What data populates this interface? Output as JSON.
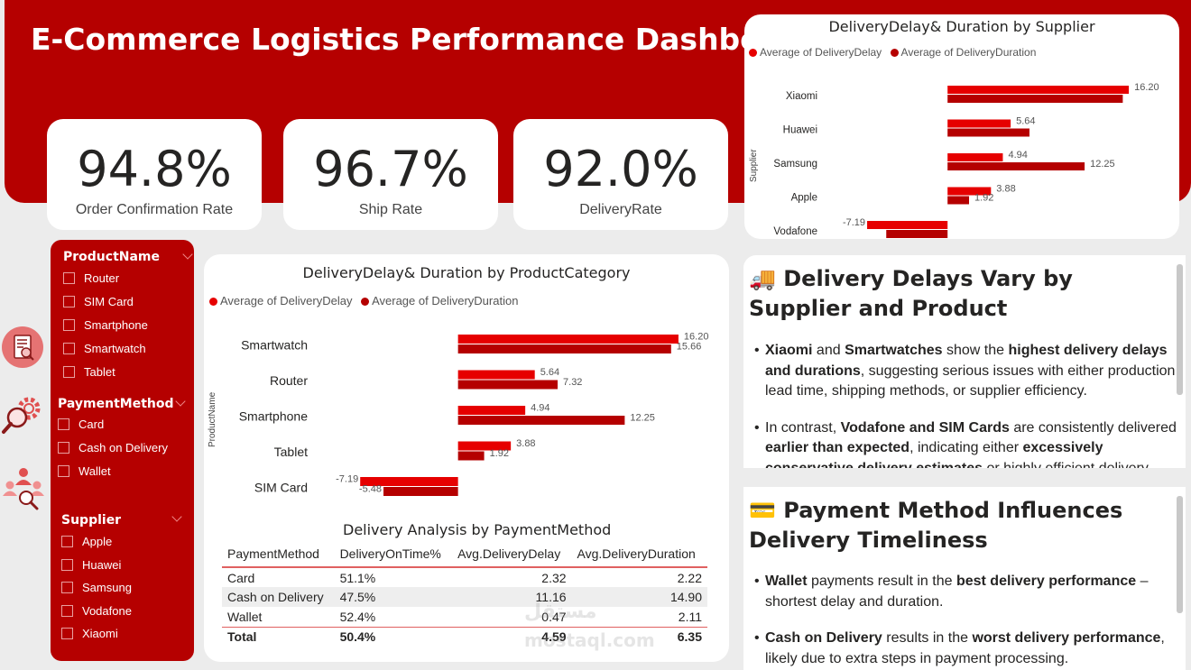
{
  "header": {
    "title": "E-Commerce Logistics Performance Dashboard"
  },
  "kpis": [
    {
      "value": "94.8%",
      "label": "Order Confirmation Rate"
    },
    {
      "value": "96.7%",
      "label": "Ship Rate"
    },
    {
      "value": "92.0%",
      "label": "DeliveryRate"
    }
  ],
  "colors": {
    "primary": "#b50000",
    "delay": "#e60000",
    "duration": "#b50000"
  },
  "legend": {
    "delay": "Average of DeliveryDelay",
    "duration": "Average of DeliveryDuration"
  },
  "supplier_chart": {
    "title": "DeliveryDelay& Duration by Supplier",
    "axis_title": "Supplier",
    "chart_data": {
      "type": "bar",
      "orientation": "horizontal",
      "title": "DeliveryDelay& Duration by Supplier",
      "ylabel": "Supplier",
      "categories": [
        "Xiaomi",
        "Huawei",
        "Samsung",
        "Apple",
        "Vodafone"
      ],
      "series": [
        {
          "name": "Average of DeliveryDelay",
          "values": [
            16.2,
            5.64,
            4.94,
            3.88,
            -7.19
          ],
          "labels": [
            "16.20",
            "5.64",
            "4.94",
            "3.88",
            "-7.19"
          ]
        },
        {
          "name": "Average of DeliveryDuration",
          "values": [
            15.66,
            7.32,
            12.25,
            1.92,
            -5.48
          ],
          "labels": [
            "",
            "",
            "12.25",
            "1.92",
            ""
          ]
        }
      ],
      "xlim": [
        -8,
        17
      ],
      "legend": "top-left"
    }
  },
  "product_chart": {
    "title": "DeliveryDelay& Duration by ProductCategory",
    "axis_title": "ProductName",
    "chart_data": {
      "type": "bar",
      "orientation": "horizontal",
      "title": "DeliveryDelay& Duration by ProductCategory",
      "ylabel": "ProductName",
      "categories": [
        "Smartwatch",
        "Router",
        "Smartphone",
        "Tablet",
        "SIM Card"
      ],
      "series": [
        {
          "name": "Average of DeliveryDelay",
          "values": [
            16.2,
            5.64,
            4.94,
            3.88,
            -7.19
          ],
          "labels": [
            "16.20",
            "5.64",
            "4.94",
            "3.88",
            "-7.19"
          ]
        },
        {
          "name": "Average of DeliveryDuration",
          "values": [
            15.66,
            7.32,
            12.25,
            1.92,
            -5.48
          ],
          "labels": [
            "15.66",
            "7.32",
            "12.25",
            "1.92",
            "-5.48"
          ]
        }
      ],
      "xlim": [
        -8,
        17
      ],
      "legend": "top-left"
    }
  },
  "slicers": {
    "product": {
      "title": "ProductName",
      "items": [
        "Router",
        "SIM Card",
        "Smartphone",
        "Smartwatch",
        "Tablet"
      ]
    },
    "payment": {
      "title": "PaymentMethod",
      "items": [
        "Card",
        "Cash on Delivery",
        "Wallet"
      ]
    },
    "supplier": {
      "title": "Supplier",
      "items": [
        "Apple",
        "Huawei",
        "Samsung",
        "Vodafone",
        "Xiaomi"
      ]
    }
  },
  "nav_icons": [
    "report-icon",
    "settings-search-icon",
    "team-icon"
  ],
  "payment_table": {
    "title": "Delivery Analysis by PaymentMethod",
    "columns": [
      "PaymentMethod",
      "DeliveryOnTime%",
      "Avg.DeliveryDelay",
      "Avg.DeliveryDuration"
    ],
    "rows": [
      [
        "Card",
        "51.1%",
        "2.32",
        "2.22"
      ],
      [
        "Cash on Delivery",
        "47.5%",
        "11.16",
        "14.90"
      ],
      [
        "Wallet",
        "52.4%",
        "0.47",
        "2.11"
      ]
    ],
    "total": [
      "Total",
      "50.4%",
      "4.59",
      "6.35"
    ]
  },
  "insights": {
    "delivery": {
      "emoji": "🚚",
      "title": "Delivery Delays Vary by Supplier and Product",
      "bullets": [
        [
          {
            "b": "Xiaomi"
          },
          {
            "t": " and "
          },
          {
            "b": "Smartwatches"
          },
          {
            "t": " show the "
          },
          {
            "b": "highest delivery delays and durations"
          },
          {
            "t": ", suggesting serious issues with either production lead time, shipping methods, or supplier efficiency."
          }
        ],
        [
          {
            "t": "In contrast, "
          },
          {
            "b": "Vodafone and SIM Cards"
          },
          {
            "t": " are consistently delivered "
          },
          {
            "b": "earlier than expected"
          },
          {
            "t": ", indicating either "
          },
          {
            "b": "excessively conservative delivery estimates"
          },
          {
            "t": " or highly efficient delivery."
          }
        ]
      ]
    },
    "payment": {
      "emoji": "💳",
      "title": "Payment Method Influences Delivery Timeliness",
      "bullets": [
        [
          {
            "b": "Wallet"
          },
          {
            "t": " payments result in the "
          },
          {
            "b": "best delivery performance"
          },
          {
            "t": " – shortest delay and duration."
          }
        ],
        [
          {
            "b": "Cash on Delivery"
          },
          {
            "t": " results in the "
          },
          {
            "t": "worst delivery performance",
            "bb": true
          },
          {
            "t": ", likely due to extra steps in payment processing."
          }
        ]
      ]
    }
  },
  "watermark": {
    "brand": "مستقل",
    "url": "mostaql.com"
  }
}
